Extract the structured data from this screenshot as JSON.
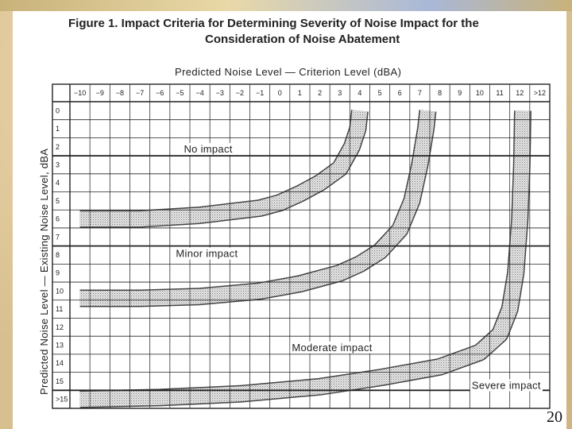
{
  "slide": {
    "number": "20"
  },
  "chart_data": {
    "type": "area",
    "title_line1": "Figure 1.  Impact Criteria for Determining Severity of Noise Impact for the",
    "title_line2": "Consideration of Noise Abatement",
    "xlabel": "Predicted Noise Level — Criterion Level (dBA)",
    "ylabel": "Predicted Noise Level — Existing Noise Level, dBA",
    "x_ticks": [
      "−10",
      "−9",
      "−8",
      "−7",
      "−6",
      "−5",
      "−4",
      "−3",
      "−2",
      "−1",
      "0",
      "1",
      "2",
      "3",
      "4",
      "5",
      "6",
      "7",
      "8",
      "9",
      "10",
      "11",
      "12",
      ">12"
    ],
    "y_ticks": [
      "0",
      "1",
      "2",
      "3",
      "4",
      "5",
      "6",
      "7",
      "8",
      "9",
      "10",
      "11",
      "12",
      "13",
      "14",
      "15",
      ">15"
    ],
    "grid": true,
    "boundary_bands": [
      {
        "between": [
          "No impact",
          "Minor impact"
        ],
        "points": [
          [
            -10,
            6
          ],
          [
            -7,
            6
          ],
          [
            -4,
            5.8
          ],
          [
            -1,
            5.4
          ],
          [
            0,
            5.1
          ],
          [
            1,
            4.6
          ],
          [
            2,
            4.0
          ],
          [
            3,
            3.2
          ],
          [
            3.6,
            2.0
          ],
          [
            3.9,
            1.0
          ],
          [
            4.0,
            0
          ]
        ]
      },
      {
        "between": [
          "Minor impact",
          "Moderate impact"
        ],
        "points": [
          [
            -10,
            10.4
          ],
          [
            -7,
            10.4
          ],
          [
            -4,
            10.3
          ],
          [
            -1,
            10.0
          ],
          [
            1,
            9.6
          ],
          [
            3,
            9.0
          ],
          [
            4,
            8.5
          ],
          [
            5,
            7.8
          ],
          [
            6,
            6.6
          ],
          [
            6.6,
            5.0
          ],
          [
            7.0,
            3.0
          ],
          [
            7.3,
            1.0
          ],
          [
            7.4,
            0
          ]
        ]
      },
      {
        "between": [
          "Moderate impact",
          "Severe impact"
        ],
        "points": [
          [
            -10,
            16
          ],
          [
            -6,
            15.9
          ],
          [
            -2,
            15.7
          ],
          [
            2,
            15.3
          ],
          [
            5,
            14.8
          ],
          [
            8,
            14.2
          ],
          [
            10,
            13.4
          ],
          [
            11,
            12.4
          ],
          [
            11.5,
            11.0
          ],
          [
            11.8,
            9.0
          ],
          [
            12.0,
            6.0
          ],
          [
            12.1,
            3.0
          ],
          [
            12.15,
            0
          ]
        ]
      }
    ],
    "zones": [
      {
        "label": "No impact",
        "x": -4.8,
        "y": 2.1
      },
      {
        "label": "Minor impact",
        "x": -5.2,
        "y": 7.9
      },
      {
        "label": "Moderate impact",
        "x": 0.6,
        "y": 13.1
      },
      {
        "label": "Severe impact",
        "x": 9.6,
        "y": 15.2
      }
    ]
  }
}
